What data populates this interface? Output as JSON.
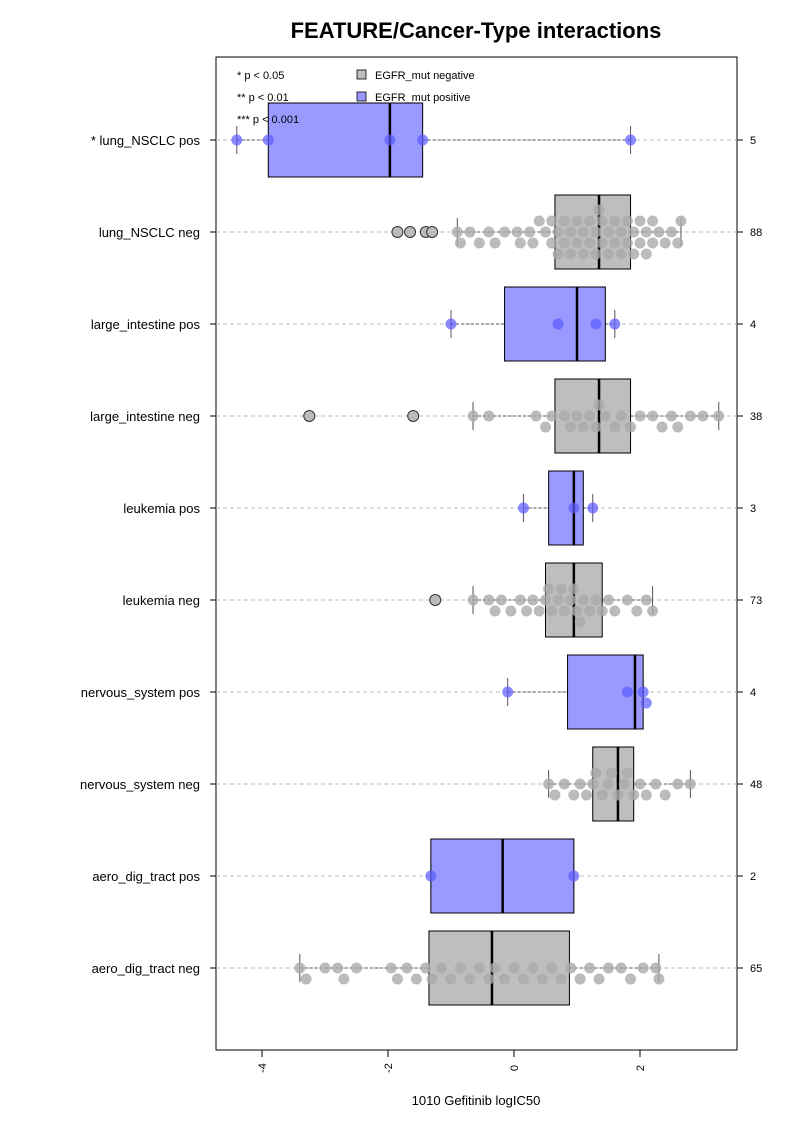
{
  "chart_data": {
    "type": "boxplot",
    "title": "FEATURE/Cancer-Type interactions",
    "xlabel": "1010 Gefitinib logIC50",
    "xlim": [
      -4.7,
      3.6
    ],
    "x_ticks": [
      -4,
      -2,
      0,
      2
    ],
    "x_tick_labels": [
      "-4",
      "-2",
      "0",
      "2"
    ],
    "grid": "horizontal dashed",
    "legend": {
      "position": "top-left",
      "items": [
        {
          "label": "EGFR_mut negative",
          "color": "#bebebe"
        },
        {
          "label": "EGFR_mut positive",
          "color": "#9999ff"
        }
      ],
      "significance": [
        "* p < 0.05",
        "** p < 0.01",
        "*** p < 0.001"
      ]
    },
    "groups": [
      {
        "label": "* lung_NSCLC pos",
        "n": "5",
        "status": "pos",
        "box": {
          "q1": -3.9,
          "median": -1.97,
          "q3": -1.45,
          "wlo": -4.4,
          "whi": 1.85
        },
        "outliers": [],
        "points": [
          -4.4,
          -3.9,
          -1.97,
          -1.45,
          1.85
        ]
      },
      {
        "label": "lung_NSCLC neg",
        "n": "88",
        "status": "neg",
        "box": {
          "q1": 0.65,
          "median": 1.35,
          "q3": 1.85,
          "wlo": -0.9,
          "whi": 2.65
        },
        "outliers": [
          -1.85,
          -1.65,
          -1.4,
          -1.3
        ],
        "points": [
          -0.9,
          -0.85,
          -0.7,
          -0.55,
          -0.4,
          -0.3,
          -0.15,
          0.05,
          0.1,
          0.25,
          0.3,
          0.4,
          0.5,
          0.6,
          0.6,
          0.7,
          0.7,
          0.8,
          0.8,
          0.9,
          0.9,
          1.0,
          1.0,
          1.1,
          1.1,
          1.2,
          1.2,
          1.3,
          1.3,
          1.35,
          1.4,
          1.4,
          1.5,
          1.5,
          1.6,
          1.6,
          1.7,
          1.7,
          1.8,
          1.8,
          1.9,
          1.9,
          2.0,
          2.0,
          2.1,
          2.1,
          2.2,
          2.2,
          2.3,
          2.4,
          2.5,
          2.6,
          2.65
        ]
      },
      {
        "label": "large_intestine pos",
        "n": "4",
        "status": "pos",
        "box": {
          "q1": -0.15,
          "median": 1.0,
          "q3": 1.45,
          "wlo": -1.0,
          "whi": 1.6
        },
        "outliers": [],
        "points": [
          -1.0,
          0.7,
          1.3,
          1.6
        ]
      },
      {
        "label": "large_intestine neg",
        "n": "38",
        "status": "neg",
        "box": {
          "q1": 0.65,
          "median": 1.35,
          "q3": 1.85,
          "wlo": -0.65,
          "whi": 3.25
        },
        "outliers": [
          -3.25,
          -1.6
        ],
        "points": [
          -0.65,
          -0.4,
          0.35,
          0.5,
          0.6,
          0.8,
          0.9,
          1.0,
          1.1,
          1.2,
          1.3,
          1.35,
          1.45,
          1.6,
          1.7,
          1.85,
          2.0,
          2.2,
          2.35,
          2.5,
          2.6,
          2.8,
          3.0,
          3.25
        ]
      },
      {
        "label": "leukemia pos",
        "n": "3",
        "status": "pos",
        "box": {
          "q1": 0.55,
          "median": 0.95,
          "q3": 1.1,
          "wlo": 0.15,
          "whi": 1.25
        },
        "outliers": [],
        "points": [
          0.15,
          0.95,
          1.25
        ]
      },
      {
        "label": "leukemia neg",
        "n": "73",
        "status": "neg",
        "box": {
          "q1": 0.5,
          "median": 0.95,
          "q3": 1.4,
          "wlo": -0.65,
          "whi": 2.2
        },
        "outliers": [
          -1.25
        ],
        "points": [
          -0.65,
          -0.4,
          -0.3,
          -0.2,
          -0.05,
          0.1,
          0.2,
          0.3,
          0.4,
          0.5,
          0.55,
          0.6,
          0.7,
          0.75,
          0.8,
          0.9,
          0.95,
          1.0,
          1.05,
          1.1,
          1.2,
          1.3,
          1.4,
          1.5,
          1.6,
          1.8,
          1.95,
          2.1,
          2.2
        ]
      },
      {
        "label": "nervous_system pos",
        "n": "4",
        "status": "pos",
        "box": {
          "q1": 0.85,
          "median": 1.92,
          "q3": 2.05,
          "wlo": -0.1,
          "whi": 2.05
        },
        "outliers": [],
        "points": [
          -0.1,
          1.8,
          2.05,
          2.1
        ]
      },
      {
        "label": "nervous_system neg",
        "n": "48",
        "status": "neg",
        "box": {
          "q1": 1.25,
          "median": 1.65,
          "q3": 1.9,
          "wlo": 0.55,
          "whi": 2.8
        },
        "outliers": [],
        "points": [
          0.55,
          0.65,
          0.8,
          0.95,
          1.05,
          1.15,
          1.25,
          1.3,
          1.4,
          1.5,
          1.55,
          1.65,
          1.75,
          1.8,
          1.9,
          2.0,
          2.1,
          2.25,
          2.4,
          2.6,
          2.8
        ]
      },
      {
        "label": "aero_dig_tract pos",
        "n": "2",
        "status": "pos",
        "box": {
          "q1": -1.32,
          "median": -0.18,
          "q3": 0.95,
          "wlo": -1.32,
          "whi": 0.95
        },
        "outliers": [],
        "points": [
          -1.32,
          0.95
        ]
      },
      {
        "label": "aero_dig_tract neg",
        "n": "65",
        "status": "neg",
        "box": {
          "q1": -1.35,
          "median": -0.35,
          "q3": 0.88,
          "wlo": -3.4,
          "whi": 2.3
        },
        "outliers": [],
        "points": [
          -3.4,
          -3.3,
          -3.0,
          -2.8,
          -2.7,
          -2.5,
          -1.95,
          -1.85,
          -1.7,
          -1.55,
          -1.4,
          -1.3,
          -1.15,
          -1.0,
          -0.85,
          -0.7,
          -0.55,
          -0.4,
          -0.3,
          -0.15,
          0.0,
          0.15,
          0.3,
          0.45,
          0.6,
          0.75,
          0.9,
          1.05,
          1.2,
          1.35,
          1.5,
          1.7,
          1.85,
          2.05,
          2.25,
          2.3
        ]
      }
    ]
  }
}
